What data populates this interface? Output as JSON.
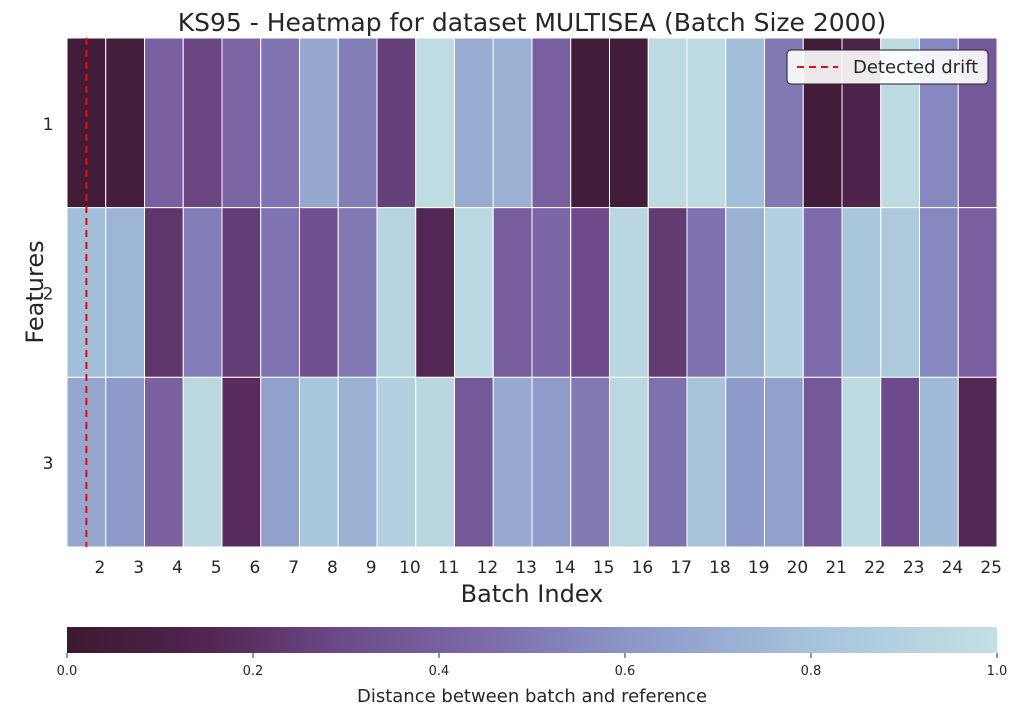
{
  "chart_data": {
    "type": "heatmap",
    "title": "KS95 - Heatmap for dataset MULTISEA (Batch Size 2000)",
    "xlabel": "Batch Index",
    "ylabel": "Features",
    "x_tick_labels": [
      "2",
      "3",
      "4",
      "5",
      "6",
      "7",
      "8",
      "9",
      "10",
      "11",
      "12",
      "13",
      "14",
      "15",
      "16",
      "17",
      "18",
      "19",
      "20",
      "21",
      "22",
      "23",
      "24",
      "25"
    ],
    "y_tick_labels": [
      "1",
      "2",
      "3"
    ],
    "columns": 24,
    "rows": [
      {
        "feature": "1",
        "values": [
          0.04,
          0.06,
          0.4,
          0.28,
          0.42,
          0.48,
          0.68,
          0.52,
          0.26,
          0.97,
          0.7,
          0.72,
          0.4,
          0.05,
          0.04,
          0.96,
          0.96,
          0.78,
          0.5,
          0.04,
          0.12,
          0.96,
          0.55,
          0.37
        ]
      },
      {
        "feature": "2",
        "values": [
          0.78,
          0.74,
          0.22,
          0.52,
          0.25,
          0.48,
          0.33,
          0.5,
          0.92,
          0.16,
          0.94,
          0.39,
          0.43,
          0.3,
          0.93,
          0.24,
          0.47,
          0.72,
          0.89,
          0.45,
          0.82,
          0.85,
          0.55,
          0.4
        ]
      },
      {
        "feature": "3",
        "values": [
          0.68,
          0.62,
          0.41,
          0.95,
          0.18,
          0.65,
          0.82,
          0.72,
          0.88,
          0.93,
          0.37,
          0.69,
          0.63,
          0.5,
          0.94,
          0.47,
          0.81,
          0.62,
          0.65,
          0.37,
          0.96,
          0.3,
          0.76,
          0.16
        ]
      }
    ],
    "colormap": "twilight-purple",
    "colorbar": {
      "label": "Distance between batch and reference",
      "range": [
        0.0,
        1.0
      ],
      "tick_labels": [
        "0.0",
        "0.2",
        "0.4",
        "0.6",
        "0.8",
        "1.0"
      ]
    },
    "drift_line": {
      "x_batch": 1.5,
      "color": "#ff0000",
      "style": "dashed"
    },
    "legend": {
      "entries": [
        "Detected drift"
      ],
      "placement": "top-right"
    }
  }
}
